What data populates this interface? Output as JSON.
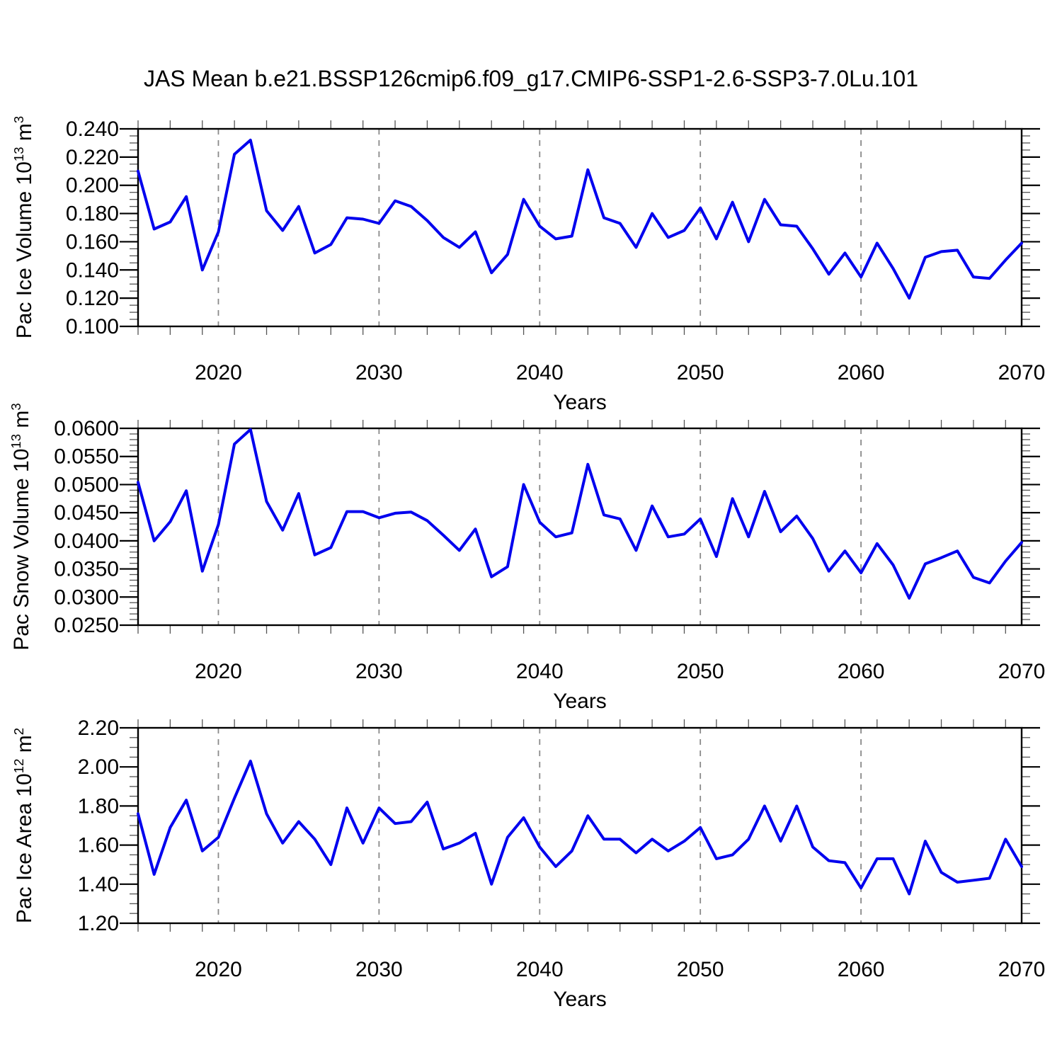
{
  "page": {
    "title": "JAS Mean b.e21.BSSP126cmip6.f09_g17.CMIP6-SSP1-2.6-SSP3-7.0Lu.101"
  },
  "colors": {
    "line": "#0000ee",
    "gridline": "#8a8a8a",
    "axis": "#000000",
    "minor_tick": "#555555",
    "background": "#ffffff"
  },
  "x_axis": {
    "label": "Years",
    "range": [
      2015,
      2070
    ],
    "major_tick_labels": [
      "2020",
      "2030",
      "2040",
      "2050",
      "2060",
      "2070"
    ],
    "major_ticks": [
      2020,
      2030,
      2040,
      2050,
      2060,
      2070
    ],
    "minor_tick_step_years": 2,
    "gridlines_at": [
      2020,
      2030,
      2040,
      2050,
      2060
    ]
  },
  "chart_data": [
    {
      "type": "line",
      "panel": 1,
      "ylabel": "Pac Ice Volume 10^13 m^3",
      "xlabel": "Years",
      "ylim": [
        0.1,
        0.24
      ],
      "ytick_labels": [
        "0.100",
        "0.120",
        "0.140",
        "0.160",
        "0.180",
        "0.200",
        "0.220",
        "0.240"
      ],
      "ytick_minor_step": 0.005,
      "grid": "x-dashed-only",
      "legend": "none",
      "x": [
        2015,
        2016,
        2017,
        2018,
        2019,
        2020,
        2021,
        2022,
        2023,
        2024,
        2025,
        2026,
        2027,
        2028,
        2029,
        2030,
        2031,
        2032,
        2033,
        2034,
        2035,
        2036,
        2037,
        2038,
        2039,
        2040,
        2041,
        2042,
        2043,
        2044,
        2045,
        2046,
        2047,
        2048,
        2049,
        2050,
        2051,
        2052,
        2053,
        2054,
        2055,
        2056,
        2057,
        2058,
        2059,
        2060,
        2061,
        2062,
        2063,
        2064,
        2065,
        2066,
        2067,
        2068,
        2069,
        2070
      ],
      "values": [
        0.21,
        0.169,
        0.174,
        0.192,
        0.14,
        0.167,
        0.222,
        0.232,
        0.182,
        0.168,
        0.185,
        0.152,
        0.158,
        0.177,
        0.176,
        0.173,
        0.189,
        0.185,
        0.175,
        0.163,
        0.156,
        0.167,
        0.138,
        0.151,
        0.19,
        0.171,
        0.162,
        0.164,
        0.211,
        0.177,
        0.173,
        0.156,
        0.18,
        0.163,
        0.168,
        0.184,
        0.162,
        0.188,
        0.16,
        0.19,
        0.172,
        0.171,
        0.155,
        0.137,
        0.152,
        0.135,
        0.159,
        0.141,
        0.12,
        0.149,
        0.153,
        0.154,
        0.135,
        0.134,
        0.147,
        0.159
      ]
    },
    {
      "type": "line",
      "panel": 2,
      "ylabel": "Pac Snow Volume 10^13 m^3",
      "xlabel": "Years",
      "ylim": [
        0.025,
        0.06
      ],
      "ytick_labels": [
        "0.0250",
        "0.0300",
        "0.0350",
        "0.0400",
        "0.0450",
        "0.0500",
        "0.0550",
        "0.0600"
      ],
      "ytick_minor_step": 0.001,
      "grid": "x-dashed-only",
      "legend": "none",
      "x": [
        2015,
        2016,
        2017,
        2018,
        2019,
        2020,
        2021,
        2022,
        2023,
        2024,
        2025,
        2026,
        2027,
        2028,
        2029,
        2030,
        2031,
        2032,
        2033,
        2034,
        2035,
        2036,
        2037,
        2038,
        2039,
        2040,
        2041,
        2042,
        2043,
        2044,
        2045,
        2046,
        2047,
        2048,
        2049,
        2050,
        2051,
        2052,
        2053,
        2054,
        2055,
        2056,
        2057,
        2058,
        2059,
        2060,
        2061,
        2062,
        2063,
        2064,
        2065,
        2066,
        2067,
        2068,
        2069,
        2070
      ],
      "values": [
        0.0504,
        0.04,
        0.0434,
        0.0489,
        0.0346,
        0.0429,
        0.0572,
        0.0598,
        0.047,
        0.0419,
        0.0484,
        0.0375,
        0.0388,
        0.0452,
        0.0452,
        0.0441,
        0.0449,
        0.0451,
        0.0436,
        0.041,
        0.0383,
        0.0421,
        0.0336,
        0.0354,
        0.05,
        0.0433,
        0.0407,
        0.0414,
        0.0536,
        0.0446,
        0.0439,
        0.0383,
        0.0462,
        0.0407,
        0.0412,
        0.0439,
        0.0372,
        0.0475,
        0.0407,
        0.0488,
        0.0416,
        0.0444,
        0.0404,
        0.0346,
        0.0382,
        0.0343,
        0.0395,
        0.0357,
        0.0298,
        0.0359,
        0.037,
        0.0382,
        0.0335,
        0.0325,
        0.0364,
        0.0397
      ]
    },
    {
      "type": "line",
      "panel": 3,
      "ylabel": "Pac Ice Area 10^12 m^2",
      "xlabel": "Years",
      "ylim": [
        1.2,
        2.2
      ],
      "ytick_labels": [
        "1.20",
        "1.40",
        "1.60",
        "1.80",
        "2.00",
        "2.20"
      ],
      "ytick_minor_step": 0.05,
      "grid": "x-dashed-only",
      "legend": "none",
      "x": [
        2015,
        2016,
        2017,
        2018,
        2019,
        2020,
        2021,
        2022,
        2023,
        2024,
        2025,
        2026,
        2027,
        2028,
        2029,
        2030,
        2031,
        2032,
        2033,
        2034,
        2035,
        2036,
        2037,
        2038,
        2039,
        2040,
        2041,
        2042,
        2043,
        2044,
        2045,
        2046,
        2047,
        2048,
        2049,
        2050,
        2051,
        2052,
        2053,
        2054,
        2055,
        2056,
        2057,
        2058,
        2059,
        2060,
        2061,
        2062,
        2063,
        2064,
        2065,
        2066,
        2067,
        2068,
        2069,
        2070
      ],
      "values": [
        1.76,
        1.45,
        1.69,
        1.83,
        1.57,
        1.64,
        1.84,
        2.03,
        1.76,
        1.61,
        1.72,
        1.63,
        1.5,
        1.79,
        1.61,
        1.79,
        1.71,
        1.72,
        1.82,
        1.58,
        1.61,
        1.66,
        1.4,
        1.64,
        1.74,
        1.59,
        1.49,
        1.57,
        1.75,
        1.63,
        1.63,
        1.56,
        1.63,
        1.57,
        1.62,
        1.69,
        1.53,
        1.55,
        1.63,
        1.8,
        1.62,
        1.8,
        1.59,
        1.52,
        1.51,
        1.38,
        1.53,
        1.53,
        1.35,
        1.62,
        1.46,
        1.41,
        1.42,
        1.43,
        1.63,
        1.49
      ]
    }
  ]
}
